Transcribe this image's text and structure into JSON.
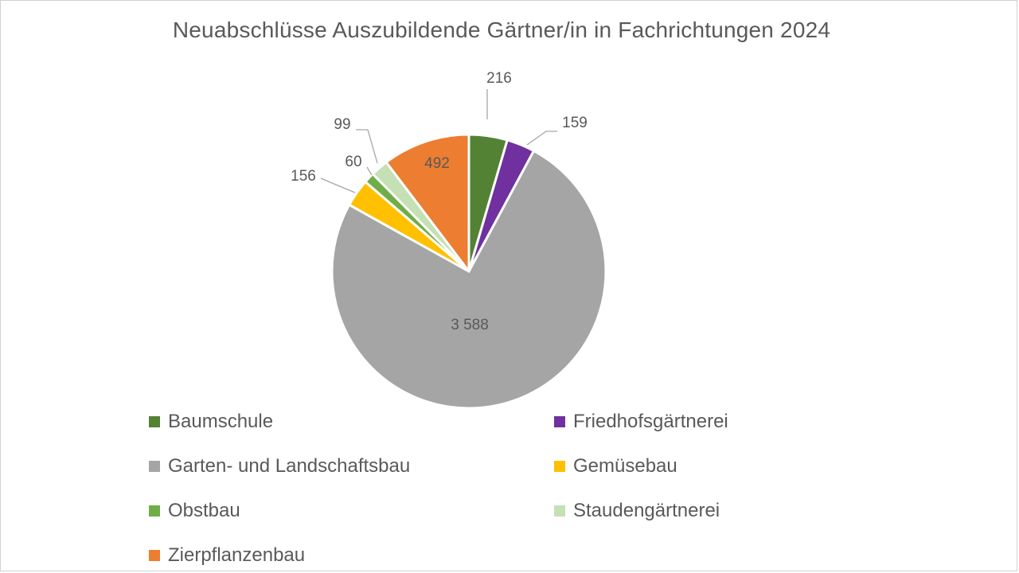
{
  "chart_data": {
    "type": "pie",
    "title": "Neuabschlüsse Auszubildende Gärtner/in in Fachrichtungen 2024",
    "slices": [
      {
        "label": "Baumschule",
        "value": 216,
        "value_label": "216",
        "color": "#548235"
      },
      {
        "label": "Friedhofsgärtnerei",
        "value": 159,
        "value_label": "159",
        "color": "#7030a0"
      },
      {
        "label": "Garten- und Landschaftsbau",
        "value": 3588,
        "value_label": "3 588",
        "color": "#a5a5a5"
      },
      {
        "label": "Gemüsebau",
        "value": 156,
        "value_label": "156",
        "color": "#ffc000"
      },
      {
        "label": "Obstbau",
        "value": 60,
        "value_label": "60",
        "color": "#70ad47"
      },
      {
        "label": "Staudengärtnerei",
        "value": 99,
        "value_label": "99",
        "color": "#c5e0b4"
      },
      {
        "label": "Zierpflanzenbau",
        "value": 492,
        "value_label": "492",
        "color": "#ed7d31"
      }
    ],
    "legend_position": "bottom",
    "label_color": "#595959"
  }
}
